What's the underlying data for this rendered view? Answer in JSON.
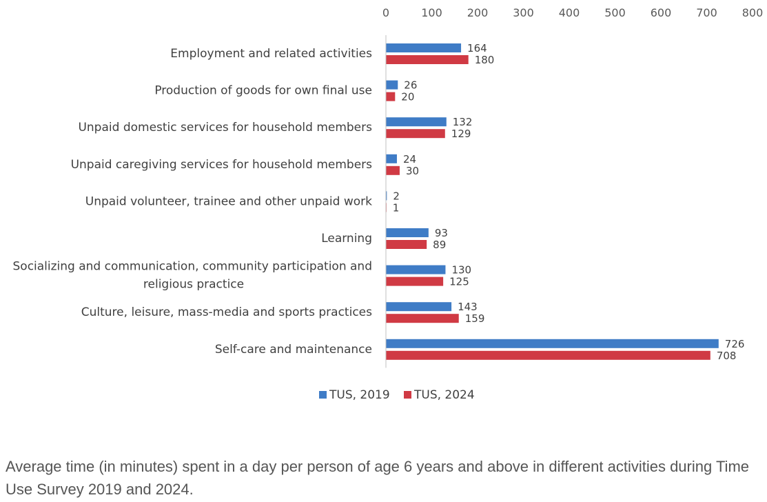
{
  "chart_data": {
    "type": "bar",
    "orientation": "horizontal",
    "categories": [
      [
        "Employment and related activities"
      ],
      [
        "Production of goods for own final use"
      ],
      [
        "Unpaid domestic services for household members"
      ],
      [
        "Unpaid caregiving services for household members"
      ],
      [
        "Unpaid volunteer, trainee and other unpaid work"
      ],
      [
        "Learning"
      ],
      [
        "Socializing and communication, community participation and",
        "religious practice"
      ],
      [
        "Culture, leisure, mass-media and sports practices"
      ],
      [
        "Self-care and maintenance"
      ]
    ],
    "series": [
      {
        "name": "TUS, 2019",
        "color": "#3f7cc6",
        "values": [
          164,
          26,
          132,
          24,
          2,
          93,
          130,
          143,
          726
        ]
      },
      {
        "name": "TUS, 2024",
        "color": "#d03a44",
        "values": [
          180,
          20,
          129,
          30,
          1,
          89,
          125,
          159,
          708
        ]
      }
    ],
    "xlim": [
      0,
      800
    ],
    "xticks": [
      0,
      100,
      200,
      300,
      400,
      500,
      600,
      700,
      800
    ],
    "axis_position": "top",
    "grid": false,
    "legend_position": "bottom"
  },
  "caption": "Average time (in minutes) spent in a day per person of age 6 years and above in different activities during Time Use Survey 2019 and 2024."
}
